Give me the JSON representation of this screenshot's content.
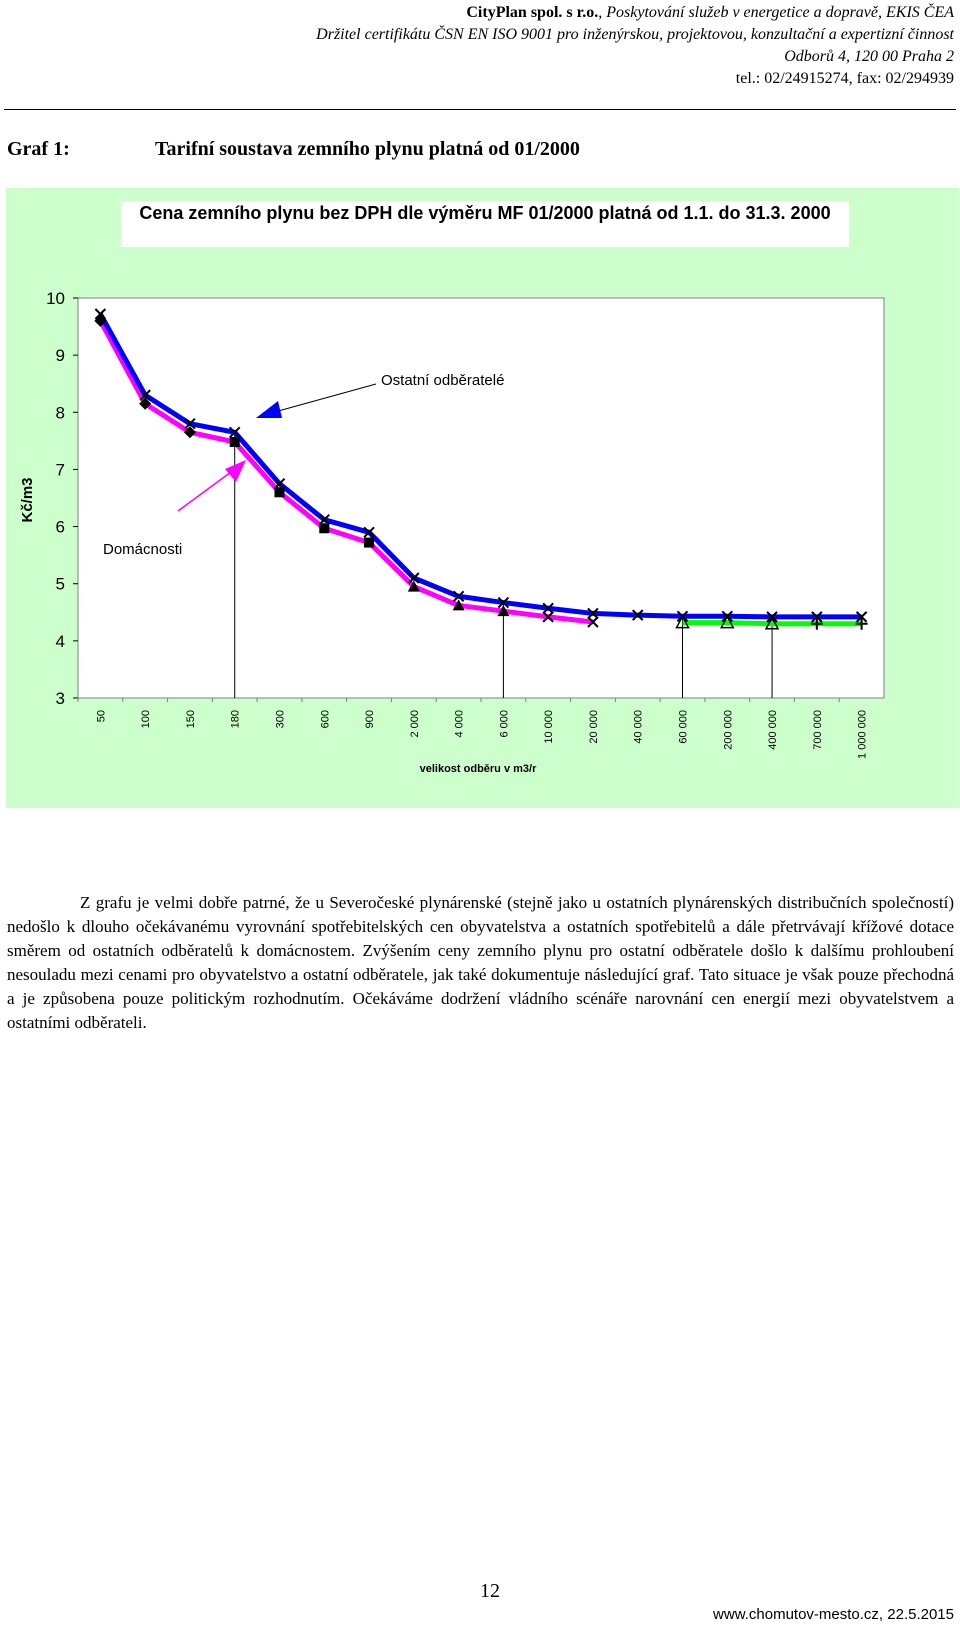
{
  "header": {
    "company": "CityPlan spol. s r.o.",
    "tagline": ", Poskytování služeb v energetice a dopravě, EKIS ČEA",
    "certificate": "Držitel certifikátu ČSN EN ISO 9001 pro inženýrskou, projektovou, konzultační a expertizní činnost",
    "address": "Odborů 4, 120 00  Praha 2",
    "contact": "tel.: 02/24915274, fax: 02/294939"
  },
  "graph": {
    "number": "Graf 1:",
    "caption": "Tarifní soustava zemního plynu platná od 01/2000"
  },
  "chart_data": {
    "type": "line",
    "title": "Cena zemního plynu bez DPH dle výměru MF 01/2000 platná od 1.1. do 31.3. 2000",
    "xlabel": "velikost odběru v m3/r",
    "ylabel": "Kč/m3",
    "ylim": [
      3,
      10
    ],
    "y_ticks": [
      "3",
      "4",
      "5",
      "6",
      "7",
      "8",
      "9",
      "10"
    ],
    "categories": [
      "50",
      "100",
      "150",
      "180",
      "300",
      "600",
      "900",
      "2 000",
      "4 000",
      "6 000",
      "10 000",
      "20 000",
      "40 000",
      "60 000",
      "200 000",
      "400 000",
      "700 000",
      "1 000 000"
    ],
    "annotations": {
      "others": "Ostatní odběratelé",
      "households": "Domácnosti"
    },
    "colors": {
      "others_line": "#0000ff",
      "households_line": "#ff00ff",
      "green_line": "#00ff00",
      "background": "#ccffcc"
    },
    "series": [
      {
        "values": [
          9.72,
          8.3,
          7.8,
          7.65,
          6.75,
          6.12,
          5.9,
          5.1,
          4.78,
          4.67,
          4.57,
          4.48,
          4.45,
          4.43,
          4.43,
          4.42,
          4.42,
          4.42
        ]
      },
      {
        "values": [
          9.6,
          8.15,
          7.65,
          7.48,
          6.6,
          5.97,
          5.72,
          4.95,
          4.62,
          4.52,
          4.42,
          4.33,
          null,
          null,
          null,
          null,
          null,
          null
        ]
      },
      {
        "values": [
          null,
          null,
          null,
          null,
          null,
          null,
          null,
          null,
          null,
          null,
          null,
          null,
          null,
          4.32,
          4.32,
          4.3,
          4.3,
          4.3
        ]
      }
    ]
  },
  "body_text": "Z grafu je velmi dobře patrné, že u Severočeské plynárenské (stejně jako u ostatních plynárenských distribučních společností) nedošlo k dlouho očekávanému vyrovnání spotřebitelských cen obyvatelstva a ostatních spotřebitelů a dále přetrvávají křížové dotace směrem od ostatních odběratelů k domácnostem. Zvýšením ceny zemního plynu pro ostatní odběratele došlo k dalšímu prohloubení nesouladu mezi cenami pro obyvatelstvo a ostatní odběratele, jak také dokumentuje následující graf. Tato situace je však pouze přechodná a je způsobena pouze politickým rozhodnutím. Očekáváme dodržení vládního scénáře narovnání cen energií mezi obyvatelstvem a ostatními odběrateli.",
  "page_number": "12",
  "footer": "www.chomutov-mesto.cz, 22.5.2015"
}
